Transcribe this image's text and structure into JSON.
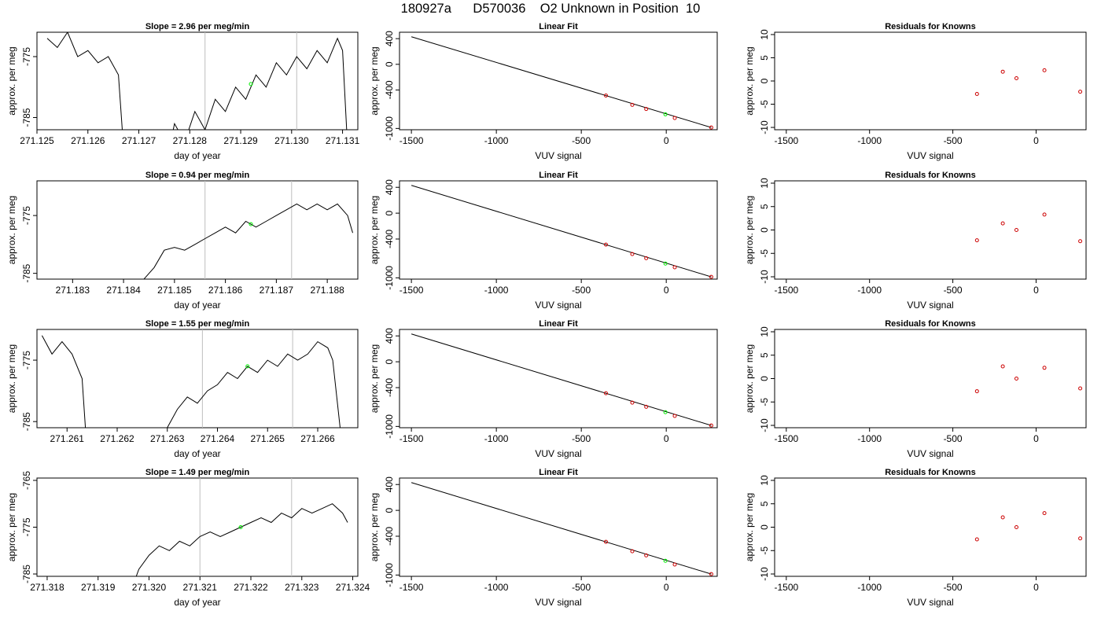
{
  "page": {
    "title": "180927a      D570036    O2 Unknown in Position  10"
  },
  "panel_titles": {
    "slope_prefix": "Slope = ",
    "slope_suffix": " per meg/min",
    "fit": "Linear Fit",
    "residuals": "Residuals for Knowns"
  },
  "axis_labels": {
    "doy_x": "day of year",
    "per_meg_y": "approx. per meg",
    "vuv_x": "VUV signal"
  },
  "colors": {
    "trace": "#000000",
    "marker_unknown": "#00ee00",
    "marker_known": "#cc0000",
    "vline": "#bebebe",
    "frame": "#000000"
  },
  "chart_data": [
    {
      "row": 1,
      "type": "line",
      "title": "Slope =  2.96  per meg/min",
      "slope": "2.96",
      "xlabel": "day of year",
      "ylabel": "approx. per meg",
      "xlim": [
        271.125,
        271.1313
      ],
      "ylim": [
        -787,
        -771
      ],
      "xticks": [
        "271.125",
        "271.126",
        "271.127",
        "271.128",
        "271.129",
        "271.130",
        "271.131"
      ],
      "yticks": [
        "-785",
        "-775"
      ],
      "vlines": [
        271.1283,
        271.1301
      ],
      "unknown_point": [
        271.1292,
        -779.5
      ],
      "segments": [
        [
          [
            271.1252,
            -772
          ],
          [
            271.1254,
            -773.5
          ],
          [
            271.1256,
            -771
          ],
          [
            271.1258,
            -775
          ],
          [
            271.126,
            -774
          ],
          [
            271.1262,
            -776
          ],
          [
            271.1264,
            -775
          ],
          [
            271.1266,
            -778
          ],
          [
            271.1267,
            -790
          ]
        ],
        [
          [
            271.1276,
            -790
          ],
          [
            271.1277,
            -786
          ],
          [
            271.1279,
            -789
          ],
          [
            271.1281,
            -784
          ],
          [
            271.1283,
            -787
          ],
          [
            271.1285,
            -782
          ],
          [
            271.1287,
            -784
          ],
          [
            271.1289,
            -780
          ],
          [
            271.1291,
            -782
          ],
          [
            271.1293,
            -778
          ],
          [
            271.1295,
            -780
          ],
          [
            271.1297,
            -776
          ],
          [
            271.1299,
            -778
          ],
          [
            271.1301,
            -775
          ],
          [
            271.1303,
            -777
          ],
          [
            271.1305,
            -774
          ],
          [
            271.1307,
            -776
          ],
          [
            271.1309,
            -772
          ],
          [
            271.131,
            -774
          ],
          [
            271.1311,
            -790
          ]
        ]
      ]
    },
    {
      "row": 2,
      "type": "line",
      "title": "Slope =  0.94  per meg/min",
      "slope": "0.94",
      "xlabel": "day of year",
      "ylabel": "approx. per meg",
      "xlim": [
        271.1823,
        271.1886
      ],
      "ylim": [
        -786,
        -769
      ],
      "xticks": [
        "271.183",
        "271.184",
        "271.185",
        "271.186",
        "271.187",
        "271.188"
      ],
      "yticks": [
        "-785",
        "-775"
      ],
      "vlines": [
        271.1856,
        271.1873
      ],
      "unknown_point": [
        271.1865,
        -776.5
      ],
      "segments": [
        [
          [
            271.1842,
            -790
          ],
          [
            271.1844,
            -786
          ],
          [
            271.1846,
            -784
          ],
          [
            271.1848,
            -781
          ],
          [
            271.185,
            -780.5
          ],
          [
            271.1852,
            -781
          ],
          [
            271.1854,
            -780
          ],
          [
            271.1856,
            -779
          ],
          [
            271.1858,
            -778
          ],
          [
            271.186,
            -777
          ],
          [
            271.1862,
            -778
          ],
          [
            271.1864,
            -776
          ],
          [
            271.1866,
            -777
          ],
          [
            271.1868,
            -776
          ],
          [
            271.187,
            -775
          ],
          [
            271.1872,
            -774
          ],
          [
            271.1874,
            -773
          ],
          [
            271.1876,
            -774
          ],
          [
            271.1878,
            -773
          ],
          [
            271.188,
            -774
          ],
          [
            271.1882,
            -773
          ],
          [
            271.1884,
            -775
          ],
          [
            271.1885,
            -778
          ]
        ]
      ]
    },
    {
      "row": 3,
      "type": "line",
      "title": "Slope =  1.55  per meg/min",
      "slope": "1.55",
      "xlabel": "day of year",
      "ylabel": "approx. per meg",
      "xlim": [
        271.2604,
        271.2668
      ],
      "ylim": [
        -786,
        -770
      ],
      "xticks": [
        "271.261",
        "271.262",
        "271.263",
        "271.264",
        "271.265",
        "271.266"
      ],
      "yticks": [
        "-785",
        "-775"
      ],
      "vlines": [
        271.2637,
        271.2655
      ],
      "unknown_point": [
        271.2646,
        -776
      ],
      "segments": [
        [
          [
            271.2605,
            -771
          ],
          [
            271.2607,
            -774
          ],
          [
            271.2609,
            -772
          ],
          [
            271.2611,
            -774
          ],
          [
            271.2613,
            -778
          ],
          [
            271.2614,
            -790
          ]
        ],
        [
          [
            271.2628,
            -790
          ],
          [
            271.263,
            -786
          ],
          [
            271.2632,
            -783
          ],
          [
            271.2634,
            -781
          ],
          [
            271.2636,
            -782
          ],
          [
            271.2638,
            -780
          ],
          [
            271.264,
            -779
          ],
          [
            271.2642,
            -777
          ],
          [
            271.2644,
            -778
          ],
          [
            271.2646,
            -776
          ],
          [
            271.2648,
            -777
          ],
          [
            271.265,
            -775
          ],
          [
            271.2652,
            -776
          ],
          [
            271.2654,
            -774
          ],
          [
            271.2656,
            -775
          ],
          [
            271.2658,
            -774
          ],
          [
            271.266,
            -772
          ],
          [
            271.2662,
            -773
          ],
          [
            271.2663,
            -775
          ],
          [
            271.2665,
            -790
          ]
        ]
      ]
    },
    {
      "row": 4,
      "type": "line",
      "title": "Slope =  1.49  per meg/min",
      "slope": "1.49",
      "xlabel": "day of year",
      "ylabel": "approx. per meg",
      "xlim": [
        271.3178,
        271.3241
      ],
      "ylim": [
        -785.5,
        -764.5
      ],
      "xticks": [
        "271.318",
        "271.319",
        "271.320",
        "271.321",
        "271.322",
        "271.323",
        "271.324"
      ],
      "yticks": [
        "-785",
        "-775",
        "-765"
      ],
      "vlines": [
        271.321,
        271.3228
      ],
      "unknown_point": [
        271.3218,
        -775
      ],
      "segments": [
        [
          [
            271.3196,
            -790
          ],
          [
            271.3198,
            -784
          ],
          [
            271.32,
            -781
          ],
          [
            271.3202,
            -779
          ],
          [
            271.3204,
            -780
          ],
          [
            271.3206,
            -778
          ],
          [
            271.3208,
            -779
          ],
          [
            271.321,
            -777
          ],
          [
            271.3212,
            -776
          ],
          [
            271.3214,
            -777
          ],
          [
            271.3216,
            -776
          ],
          [
            271.3218,
            -775
          ],
          [
            271.322,
            -774
          ],
          [
            271.3222,
            -773
          ],
          [
            271.3224,
            -774
          ],
          [
            271.3226,
            -772
          ],
          [
            271.3228,
            -773
          ],
          [
            271.323,
            -771
          ],
          [
            271.3232,
            -772
          ],
          [
            271.3234,
            -771
          ],
          [
            271.3236,
            -770
          ],
          [
            271.3238,
            -772
          ],
          [
            271.3239,
            -774
          ]
        ]
      ]
    },
    {
      "row": 1,
      "type": "scatter",
      "title": "Linear Fit",
      "xlabel": "VUV signal",
      "ylabel": "approx. per meg",
      "xlim": [
        -1570,
        300
      ],
      "ylim": [
        -1020,
        500
      ],
      "xticks": [
        -1500,
        -1000,
        -500,
        0
      ],
      "yticks": [
        400,
        0,
        -400,
        -1000
      ],
      "line": [
        [
          -1500,
          430
        ],
        [
          265,
          -985
        ]
      ],
      "knowns": [
        [
          -355,
          -487
        ],
        [
          -200,
          -632
        ],
        [
          -118,
          -696
        ],
        [
          50,
          -838
        ],
        [
          265,
          -985
        ]
      ],
      "unknown": [
        [
          -5,
          -780
        ]
      ]
    },
    {
      "row": 2,
      "type": "scatter",
      "title": "Linear Fit",
      "xlabel": "VUV signal",
      "ylabel": "approx. per meg",
      "xlim": [
        -1570,
        300
      ],
      "ylim": [
        -1020,
        500
      ],
      "xticks": [
        -1500,
        -1000,
        -500,
        0
      ],
      "yticks": [
        400,
        0,
        -400,
        -1000
      ],
      "line": [
        [
          -1500,
          430
        ],
        [
          265,
          -985
        ]
      ],
      "knowns": [
        [
          -355,
          -487
        ],
        [
          -200,
          -632
        ],
        [
          -118,
          -696
        ],
        [
          50,
          -838
        ],
        [
          265,
          -985
        ]
      ],
      "unknown": [
        [
          -5,
          -780
        ]
      ]
    },
    {
      "row": 3,
      "type": "scatter",
      "title": "Linear Fit",
      "xlabel": "VUV signal",
      "ylabel": "approx. per meg",
      "xlim": [
        -1570,
        300
      ],
      "ylim": [
        -1020,
        500
      ],
      "xticks": [
        -1500,
        -1000,
        -500,
        0
      ],
      "yticks": [
        400,
        0,
        -400,
        -1000
      ],
      "line": [
        [
          -1500,
          430
        ],
        [
          265,
          -985
        ]
      ],
      "knowns": [
        [
          -355,
          -487
        ],
        [
          -200,
          -632
        ],
        [
          -118,
          -696
        ],
        [
          50,
          -838
        ],
        [
          265,
          -985
        ]
      ],
      "unknown": [
        [
          -5,
          -780
        ]
      ]
    },
    {
      "row": 4,
      "type": "scatter",
      "title": "Linear Fit",
      "xlabel": "VUV signal",
      "ylabel": "approx. per meg",
      "xlim": [
        -1570,
        300
      ],
      "ylim": [
        -1020,
        500
      ],
      "xticks": [
        -1500,
        -1000,
        -500,
        0
      ],
      "yticks": [
        400,
        0,
        -400,
        -1000
      ],
      "line": [
        [
          -1500,
          430
        ],
        [
          265,
          -985
        ]
      ],
      "knowns": [
        [
          -355,
          -487
        ],
        [
          -200,
          -632
        ],
        [
          -118,
          -696
        ],
        [
          50,
          -838
        ],
        [
          265,
          -985
        ]
      ],
      "unknown": [
        [
          -5,
          -780
        ]
      ]
    },
    {
      "row": 1,
      "type": "scatter",
      "title": "Residuals for Knowns",
      "xlabel": "VUV signal",
      "ylabel": "approx. per meg",
      "xlim": [
        -1570,
        300
      ],
      "ylim": [
        -10.5,
        10.5
      ],
      "xticks": [
        -1500,
        -1000,
        -500,
        0
      ],
      "yticks": [
        -10,
        -5,
        0,
        5,
        10
      ],
      "points": [
        [
          -355,
          -2.8
        ],
        [
          -200,
          2.0
        ],
        [
          -118,
          0.6
        ],
        [
          50,
          2.3
        ],
        [
          265,
          -2.3
        ]
      ]
    },
    {
      "row": 2,
      "type": "scatter",
      "title": "Residuals for Knowns",
      "xlabel": "VUV signal",
      "ylabel": "approx. per meg",
      "xlim": [
        -1570,
        300
      ],
      "ylim": [
        -10.5,
        10.5
      ],
      "xticks": [
        -1500,
        -1000,
        -500,
        0
      ],
      "yticks": [
        -10,
        -5,
        0,
        5,
        10
      ],
      "points": [
        [
          -355,
          -2.2
        ],
        [
          -200,
          1.4
        ],
        [
          -118,
          0.0
        ],
        [
          50,
          3.3
        ],
        [
          265,
          -2.4
        ]
      ]
    },
    {
      "row": 3,
      "type": "scatter",
      "title": "Residuals for Knowns",
      "xlabel": "VUV signal",
      "ylabel": "approx. per meg",
      "xlim": [
        -1570,
        300
      ],
      "ylim": [
        -10.5,
        10.5
      ],
      "xticks": [
        -1500,
        -1000,
        -500,
        0
      ],
      "yticks": [
        -10,
        -5,
        0,
        5,
        10
      ],
      "points": [
        [
          -355,
          -2.7
        ],
        [
          -200,
          2.6
        ],
        [
          -118,
          0.0
        ],
        [
          50,
          2.3
        ],
        [
          265,
          -2.1
        ]
      ]
    },
    {
      "row": 4,
      "type": "scatter",
      "title": "Residuals for Knowns",
      "xlabel": "VUV signal",
      "ylabel": "approx. per meg",
      "xlim": [
        -1570,
        300
      ],
      "ylim": [
        -10.5,
        10.5
      ],
      "xticks": [
        -1500,
        -1000,
        -500,
        0
      ],
      "yticks": [
        -10,
        -5,
        0,
        5,
        10
      ],
      "points": [
        [
          -355,
          -2.6
        ],
        [
          -200,
          2.1
        ],
        [
          -118,
          0.0
        ],
        [
          50,
          3.0
        ],
        [
          265,
          -2.4
        ]
      ]
    }
  ]
}
